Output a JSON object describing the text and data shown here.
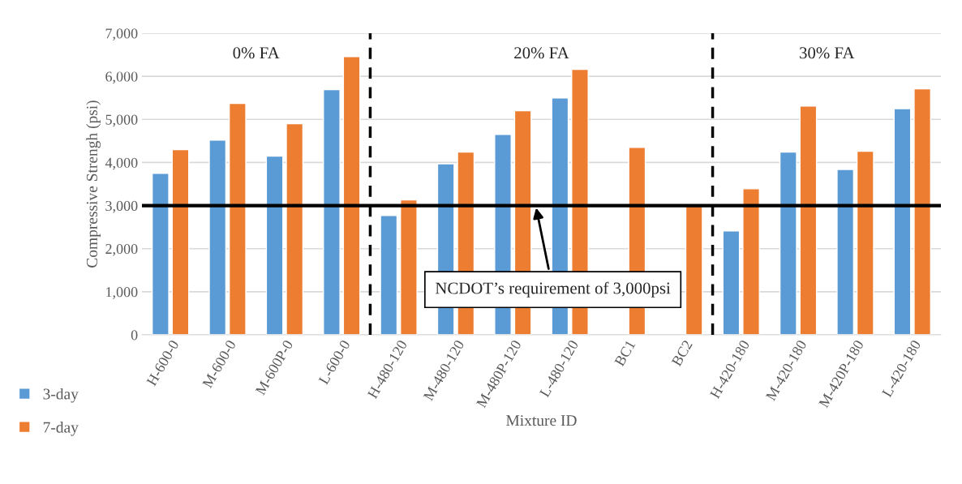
{
  "chart_data": {
    "type": "bar",
    "xlabel": "Mixture ID",
    "ylabel": "Compressive Strengh (psi)",
    "categories": [
      "H-600-0",
      "M-600-0",
      "M-600P-0",
      "L-600-0",
      "H-480-120",
      "M-480-120",
      "M-480P-120",
      "L-480-120",
      "BC1",
      "BC2",
      "H-420-180",
      "M-420-180",
      "M-420P-180",
      "L-420-180"
    ],
    "series": [
      {
        "name": "3-day",
        "color": "#5b9bd5",
        "values": [
          3750,
          4520,
          4150,
          5690,
          2770,
          3970,
          4650,
          5500,
          null,
          null,
          2410,
          4240,
          3840,
          5250
        ]
      },
      {
        "name": "7-day",
        "color": "#ed7d31",
        "values": [
          4300,
          5370,
          4900,
          6460,
          3130,
          4240,
          5200,
          6160,
          4350,
          3000,
          3390,
          5310,
          4260,
          5710
        ]
      }
    ],
    "ylim": [
      0,
      7000
    ],
    "yticks": [
      {
        "value": 0,
        "label": "0"
      },
      {
        "value": 1000,
        "label": "1,000"
      },
      {
        "value": 2000,
        "label": "2,000"
      },
      {
        "value": 3000,
        "label": "3,000"
      },
      {
        "value": 4000,
        "label": "4,000"
      },
      {
        "value": 5000,
        "label": "5,000"
      },
      {
        "value": 6000,
        "label": "6,000"
      },
      {
        "value": 7000,
        "label": "7,000"
      }
    ],
    "grid": "y",
    "legend": "bottom left",
    "ref_lines": [
      {
        "axis": "y",
        "value": 3000,
        "color": "#000000",
        "line_style": "solid",
        "label": "NCDOT’s requirement of 3,000psi"
      }
    ],
    "annotations": [
      "0% FA",
      "20% FA",
      "30% FA"
    ]
  }
}
